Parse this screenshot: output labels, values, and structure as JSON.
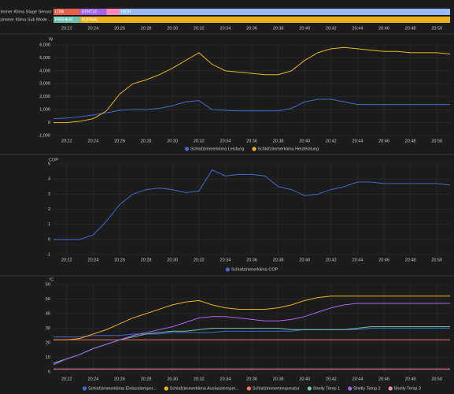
{
  "chart_data": [
    {
      "type": "timeline",
      "xlim": [
        "20:21",
        "20:51"
      ],
      "xticks": [
        "20:22",
        "20:24",
        "20:26",
        "20:28",
        "20:30",
        "20:32",
        "20:34",
        "20:36",
        "20:38",
        "20:40",
        "20:42",
        "20:44",
        "20:46",
        "20:48",
        "20:50"
      ],
      "rows": [
        {
          "name": "Schlafzimmer Klima Stage Sensor",
          "segments": [
            {
              "label": "LOW",
              "color": "#e8604c",
              "start": "20:21",
              "end": "20:23"
            },
            {
              "label": "GENTLE",
              "color": "#a463f2",
              "start": "20:23",
              "end": "20:25"
            },
            {
              "label": null,
              "color": "#ff8ab7",
              "start": "20:25",
              "end": "20:26"
            },
            {
              "label": "HIGH",
              "color": "#97bbf5",
              "start": "20:26",
              "end": "20:51"
            }
          ]
        },
        {
          "name": "Schlafzimmer Klima Sub Mode ...",
          "segments": [
            {
              "label": "PREHEAT",
              "color": "#6cc5b0",
              "start": "20:21",
              "end": "20:23"
            },
            {
              "label": "NORMAL",
              "color": "#efb118",
              "start": "20:23",
              "end": "20:51"
            }
          ]
        }
      ]
    },
    {
      "type": "line",
      "y_label": "W",
      "xlim": [
        "20:21",
        "20:51"
      ],
      "xticks": [
        "20:22",
        "20:24",
        "20:26",
        "20:28",
        "20:30",
        "20:32",
        "20:34",
        "20:36",
        "20:38",
        "20:40",
        "20:42",
        "20:44",
        "20:46",
        "20:48",
        "20:50"
      ],
      "ylim": [
        -1000,
        6000
      ],
      "yticks": [
        {
          "value": -1000,
          "label": "-1,000"
        },
        0,
        {
          "value": 1000,
          "label": "1,000"
        },
        {
          "value": 2000,
          "label": "2,000"
        },
        {
          "value": 3000,
          "label": "3,000"
        },
        {
          "value": 4000,
          "label": "4,000"
        },
        {
          "value": 5000,
          "label": "5,000"
        },
        {
          "value": 6000,
          "label": "6,000"
        }
      ],
      "grid": true,
      "legend": "bottom",
      "x": [
        "20:21",
        "20:22",
        "20:23",
        "20:24",
        "20:25",
        "20:26",
        "20:27",
        "20:28",
        "20:29",
        "20:30",
        "20:31",
        "20:32",
        "20:33",
        "20:34",
        "20:35",
        "20:36",
        "20:37",
        "20:38",
        "20:39",
        "20:40",
        "20:41",
        "20:42",
        "20:43",
        "20:44",
        "20:45",
        "20:46",
        "20:47",
        "20:48",
        "20:49",
        "20:50",
        "20:51"
      ],
      "series": [
        {
          "name": "Schlafzimmerklima Leistung",
          "color": "#4269d0",
          "values": [
            300,
            350,
            450,
            600,
            750,
            950,
            1000,
            1000,
            1100,
            1300,
            1600,
            1700,
            1000,
            950,
            900,
            900,
            900,
            900,
            1100,
            1600,
            1800,
            1800,
            1600,
            1400,
            1400,
            1400,
            1400,
            1400,
            1400,
            1400,
            1400
          ]
        },
        {
          "name": "Schlafzimmerklima Heizleistung",
          "color": "#efb118",
          "values": [
            0,
            0,
            100,
            300,
            900,
            2200,
            3000,
            3300,
            3700,
            4200,
            4800,
            5400,
            4500,
            4000,
            3900,
            3800,
            3700,
            3700,
            4000,
            4800,
            5400,
            5700,
            5800,
            5700,
            5600,
            5500,
            5500,
            5400,
            5400,
            5400,
            5300
          ]
        }
      ]
    },
    {
      "type": "line",
      "y_label": "COP",
      "xlim": [
        "20:21",
        "20:51"
      ],
      "xticks": [
        "20:22",
        "20:24",
        "20:26",
        "20:28",
        "20:30",
        "20:32",
        "20:34",
        "20:36",
        "20:38",
        "20:40",
        "20:42",
        "20:44",
        "20:46",
        "20:48",
        "20:50"
      ],
      "ylim": [
        -1,
        5
      ],
      "yticks": [
        -1,
        0,
        1,
        2,
        3,
        4,
        5
      ],
      "grid": true,
      "legend": "bottom",
      "x": [
        "20:21",
        "20:22",
        "20:23",
        "20:24",
        "20:25",
        "20:26",
        "20:27",
        "20:28",
        "20:29",
        "20:30",
        "20:31",
        "20:32",
        "20:33",
        "20:34",
        "20:35",
        "20:36",
        "20:37",
        "20:38",
        "20:39",
        "20:40",
        "20:41",
        "20:42",
        "20:43",
        "20:44",
        "20:45",
        "20:46",
        "20:47",
        "20:48",
        "20:49",
        "20:50",
        "20:51"
      ],
      "series": [
        {
          "name": "Schlafzimmerklima COP",
          "color": "#4269d0",
          "values": [
            0,
            0,
            0,
            0.3,
            1.2,
            2.3,
            3.0,
            3.3,
            3.4,
            3.3,
            3.1,
            3.2,
            4.6,
            4.2,
            4.3,
            4.3,
            4.2,
            3.5,
            3.3,
            2.9,
            3.0,
            3.3,
            3.5,
            3.8,
            3.8,
            3.7,
            3.7,
            3.7,
            3.7,
            3.7,
            3.6
          ]
        }
      ]
    },
    {
      "type": "line",
      "y_label": "°C",
      "xlim": [
        "20:21",
        "20:51"
      ],
      "xticks": [
        "20:22",
        "20:24",
        "20:26",
        "20:28",
        "20:30",
        "20:32",
        "20:34",
        "20:36",
        "20:38",
        "20:40",
        "20:42",
        "20:44",
        "20:46",
        "20:48",
        "20:50"
      ],
      "ylim": [
        0,
        60
      ],
      "yticks": [
        0,
        10,
        20,
        30,
        40,
        50,
        60
      ],
      "grid": true,
      "legend": "bottom",
      "x": [
        "20:21",
        "20:22",
        "20:23",
        "20:24",
        "20:25",
        "20:26",
        "20:27",
        "20:28",
        "20:29",
        "20:30",
        "20:31",
        "20:32",
        "20:33",
        "20:34",
        "20:35",
        "20:36",
        "20:37",
        "20:38",
        "20:39",
        "20:40",
        "20:41",
        "20:42",
        "20:43",
        "20:44",
        "20:45",
        "20:46",
        "20:47",
        "20:48",
        "20:49",
        "20:50",
        "20:51"
      ],
      "series": [
        {
          "name": "Schlafzimmerklima Einlasstemper...",
          "color": "#4269d0",
          "values": [
            24,
            24,
            24,
            25,
            25,
            25,
            26,
            26,
            26,
            27,
            27,
            27,
            27,
            28,
            28,
            28,
            28,
            28,
            28,
            29,
            29,
            29,
            29,
            29,
            30,
            30,
            30,
            30,
            30,
            30,
            30
          ]
        },
        {
          "name": "Schlafzimmerklima Auslasstemper...",
          "color": "#efb118",
          "values": [
            22,
            22,
            23,
            26,
            29,
            33,
            37,
            40,
            43,
            46,
            48,
            49,
            46,
            44,
            43,
            43,
            43,
            44,
            46,
            49,
            51,
            52,
            52,
            52,
            52,
            52,
            52,
            52,
            52,
            52,
            52
          ]
        },
        {
          "name": "Schlafzimmertemperatur",
          "color": "#ff725c",
          "values": [
            22,
            22,
            22,
            22,
            22,
            22,
            22,
            22,
            22,
            22,
            22,
            22,
            22,
            22,
            22,
            22,
            22,
            22,
            22,
            22,
            22,
            22,
            22,
            22,
            22,
            22,
            22,
            22,
            22,
            22,
            22
          ]
        },
        {
          "name": "Shelly Temp 1",
          "color": "#6cc5b0",
          "values": [
            6,
            9,
            12,
            16,
            19,
            22,
            24,
            26,
            27,
            28,
            28,
            29,
            30,
            30,
            30,
            30,
            30,
            30,
            29,
            29,
            29,
            29,
            29,
            30,
            31,
            31,
            31,
            31,
            31,
            31,
            31
          ]
        },
        {
          "name": "Shelly Temp 2",
          "color": "#a463f2",
          "values": [
            5,
            9,
            12,
            16,
            19,
            22,
            25,
            27,
            29,
            31,
            34,
            37,
            38,
            38,
            37,
            36,
            35,
            35,
            36,
            38,
            41,
            44,
            46,
            47,
            47,
            47,
            47,
            47,
            47,
            47,
            47
          ]
        },
        {
          "name": "Shelly Temp 3",
          "color": "#ff8ab7",
          "values": [
            2,
            2,
            2,
            2,
            2,
            2,
            2,
            2,
            2,
            2,
            2,
            2,
            2,
            2,
            2,
            2,
            2,
            2,
            2,
            2,
            2,
            2,
            2,
            2,
            2,
            2,
            2,
            2,
            2,
            2,
            2
          ]
        }
      ]
    }
  ]
}
